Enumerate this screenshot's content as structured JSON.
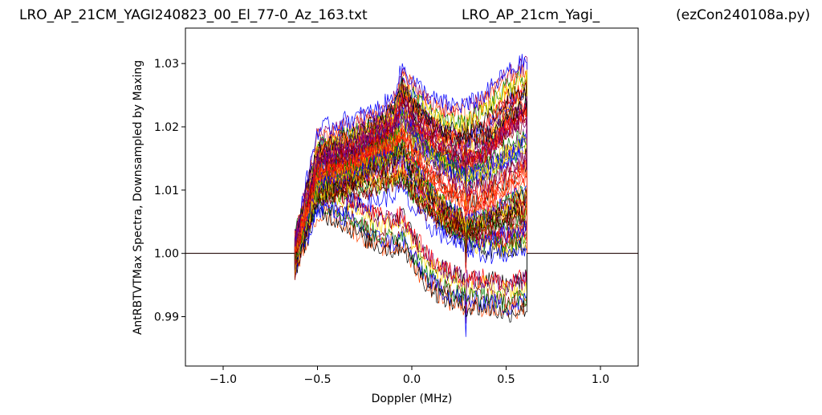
{
  "header": {
    "title_left": "LRO_AP_21CM_YAGI240823_00_El_77-0_Az_163.txt",
    "title_mid": "LRO_AP_21cm_Yagi_",
    "title_right": "(ezCon240108a.py)"
  },
  "chart_data": {
    "type": "line",
    "title": "",
    "xlabel": "Doppler (MHz)",
    "ylabel": "AntRBTVTMax Spectra, Downsampled by Maxing",
    "xlim": [
      -1.2,
      1.2
    ],
    "ylim": [
      0.9822,
      1.0356
    ],
    "x_ticks": [
      -1.0,
      -0.5,
      0.0,
      0.5,
      1.0
    ],
    "x_tick_labels": [
      "−1.0",
      "−0.5",
      "0.0",
      "0.5",
      "1.0"
    ],
    "y_ticks": [
      0.99,
      1.0,
      1.01,
      1.02,
      1.03
    ],
    "y_tick_labels": [
      "0.99",
      "1.00",
      "1.01",
      "1.02",
      "1.03"
    ],
    "grid": false,
    "legend": "none",
    "baseline": 1.0,
    "band_edges": [
      -0.62,
      0.61
    ],
    "series_colors": [
      "#ff0000",
      "#0000ff",
      "#008000",
      "#000000",
      "#ffd700",
      "#8b0000",
      "#800080",
      "#ff4500"
    ],
    "series": [
      {
        "x": [
          -1.2,
          -0.62,
          -0.5,
          -0.4,
          -0.3,
          -0.2,
          -0.1,
          -0.05,
          0.0,
          0.1,
          0.2,
          0.3,
          0.4,
          0.5,
          0.61,
          1.2
        ],
        "values": [
          1.0,
          1.0,
          1.015,
          1.016,
          1.017,
          1.019,
          1.021,
          1.026,
          1.023,
          1.019,
          1.017,
          1.016,
          1.018,
          1.022,
          1.025,
          1.0
        ]
      },
      {
        "x": [
          -1.2,
          -0.62,
          -0.5,
          -0.4,
          -0.3,
          -0.2,
          -0.1,
          -0.05,
          0.0,
          0.1,
          0.2,
          0.3,
          0.4,
          0.5,
          0.61,
          1.2
        ],
        "values": [
          1.0,
          1.0,
          1.013,
          1.014,
          1.015,
          1.017,
          1.018,
          1.022,
          1.019,
          1.015,
          1.013,
          1.011,
          1.012,
          1.014,
          1.016,
          1.0
        ]
      },
      {
        "x": [
          -1.2,
          -0.62,
          -0.5,
          -0.4,
          -0.3,
          -0.2,
          -0.1,
          -0.05,
          0.0,
          0.1,
          0.2,
          0.3,
          0.4,
          0.5,
          0.61,
          1.2
        ],
        "values": [
          1.0,
          1.0,
          1.011,
          1.012,
          1.013,
          1.014,
          1.015,
          1.016,
          1.012,
          1.008,
          1.004,
          1.002,
          1.001,
          1.001,
          1.002,
          1.0
        ]
      },
      {
        "x": [
          -1.2,
          -0.62,
          -0.5,
          -0.4,
          -0.3,
          -0.2,
          -0.1,
          -0.05,
          0.0,
          0.1,
          0.2,
          0.3,
          0.4,
          0.5,
          0.61,
          1.2
        ],
        "values": [
          1.0,
          1.0,
          1.009,
          1.008,
          1.006,
          1.004,
          1.003,
          1.004,
          1.001,
          0.997,
          0.995,
          0.994,
          0.994,
          0.993,
          0.994,
          1.0
        ]
      },
      {
        "x": [
          -1.2,
          -0.62,
          -0.5,
          -0.4,
          -0.3,
          -0.2,
          -0.1,
          -0.05,
          0.0,
          0.1,
          0.2,
          0.3,
          0.4,
          0.5,
          0.61,
          1.2
        ],
        "values": [
          1.0,
          1.0,
          1.017,
          1.018,
          1.019,
          1.02,
          1.022,
          1.027,
          1.025,
          1.022,
          1.021,
          1.021,
          1.023,
          1.026,
          1.028,
          1.0
        ]
      },
      {
        "x": [
          -1.2,
          -0.62,
          -0.5,
          -0.4,
          -0.3,
          -0.2,
          -0.1,
          -0.05,
          0.0,
          0.1,
          0.2,
          0.3,
          0.4,
          0.5,
          0.61,
          1.2
        ],
        "values": [
          1.0,
          1.0,
          1.01,
          1.01,
          1.011,
          1.011,
          1.012,
          1.013,
          1.01,
          1.007,
          1.005,
          1.004,
          1.005,
          1.006,
          1.007,
          1.0
        ]
      },
      {
        "x": [
          -1.2,
          -0.62,
          -0.5,
          -0.4,
          -0.3,
          -0.2,
          -0.1,
          -0.05,
          0.0,
          0.1,
          0.2,
          0.3,
          0.4,
          0.5,
          0.61,
          1.2
        ],
        "values": [
          1.0,
          1.0,
          1.014,
          1.015,
          1.016,
          1.018,
          1.02,
          1.024,
          1.021,
          1.018,
          1.016,
          1.015,
          1.016,
          1.019,
          1.021,
          1.0
        ]
      },
      {
        "x": [
          -1.2,
          -0.62,
          -0.5,
          -0.4,
          -0.3,
          -0.2,
          -0.1,
          -0.05,
          0.0,
          0.1,
          0.2,
          0.3,
          0.4,
          0.5,
          0.61,
          1.2
        ],
        "values": [
          1.0,
          1.0,
          1.012,
          1.013,
          1.014,
          1.016,
          1.017,
          1.019,
          1.016,
          1.012,
          1.009,
          1.007,
          1.008,
          1.01,
          1.012,
          1.0
        ]
      }
    ]
  }
}
